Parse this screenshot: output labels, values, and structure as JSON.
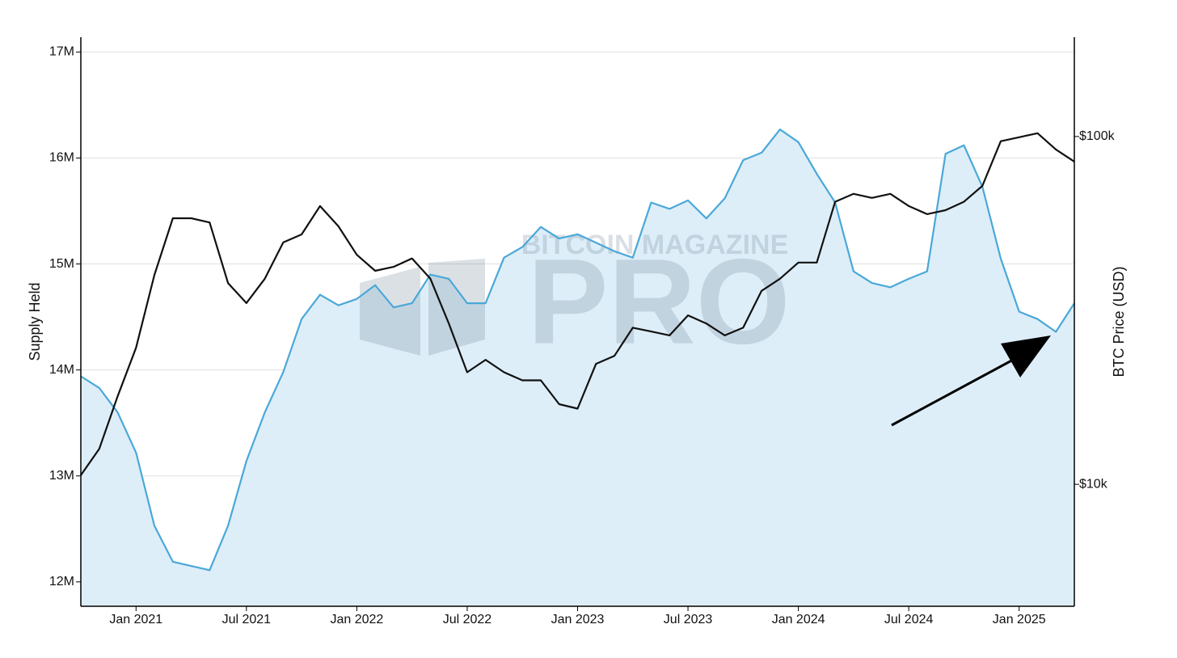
{
  "chart_data": {
    "type": "line",
    "y_label": "Supply Held",
    "y2_label": "BTC Price (USD)",
    "watermark": [
      "BITCOIN MAGAZINE",
      "PRO"
    ],
    "x": [
      "2020-10",
      "2020-11",
      "2020-12",
      "2021-01",
      "2021-02",
      "2021-03",
      "2021-04",
      "2021-05",
      "2021-06",
      "2021-07",
      "2021-08",
      "2021-09",
      "2021-10",
      "2021-11",
      "2021-12",
      "2022-01",
      "2022-02",
      "2022-03",
      "2022-04",
      "2022-05",
      "2022-06",
      "2022-07",
      "2022-08",
      "2022-09",
      "2022-10",
      "2022-11",
      "2022-12",
      "2023-01",
      "2023-02",
      "2023-03",
      "2023-04",
      "2023-05",
      "2023-06",
      "2023-07",
      "2023-08",
      "2023-09",
      "2023-10",
      "2023-11",
      "2023-12",
      "2024-01",
      "2024-02",
      "2024-03",
      "2024-04",
      "2024-05",
      "2024-06",
      "2024-07",
      "2024-08",
      "2024-09",
      "2024-10",
      "2024-11",
      "2024-12",
      "2025-01",
      "2025-02",
      "2025-03",
      "2025-04"
    ],
    "xlim": [
      "2020-10",
      "2025-04"
    ],
    "xticks": [
      {
        "value": "2021-01",
        "label": "Jan 2021"
      },
      {
        "value": "2021-07",
        "label": "Jul 2021"
      },
      {
        "value": "2022-01",
        "label": "Jan 2022"
      },
      {
        "value": "2022-07",
        "label": "Jul 2022"
      },
      {
        "value": "2023-01",
        "label": "Jan 2023"
      },
      {
        "value": "2023-07",
        "label": "Jul 2023"
      },
      {
        "value": "2024-01",
        "label": "Jan 2024"
      },
      {
        "value": "2024-07",
        "label": "Jul 2024"
      },
      {
        "value": "2025-01",
        "label": "Jan 2025"
      }
    ],
    "ylim": [
      11770000,
      17140000
    ],
    "yticks": [
      {
        "value": 12000000,
        "label": "12M"
      },
      {
        "value": 13000000,
        "label": "13M"
      },
      {
        "value": 14000000,
        "label": "14M"
      },
      {
        "value": 15000000,
        "label": "15M"
      },
      {
        "value": 16000000,
        "label": "16M"
      },
      {
        "value": 17000000,
        "label": "17M"
      }
    ],
    "y2lim": [
      4460,
      193000
    ],
    "y2ticks": [
      {
        "value": 10000,
        "label": "$10k"
      },
      {
        "value": 100000,
        "label": "$100k"
      }
    ],
    "y2log": true,
    "grid": true,
    "series": [
      {
        "name": "Supply Held",
        "color": "#4aa8d8",
        "fill": "#ddeef9",
        "axis": "y",
        "values": [
          13940000,
          13830000,
          13600000,
          13220000,
          12530000,
          12190000,
          12150000,
          12110000,
          12530000,
          13140000,
          13600000,
          13980000,
          14480000,
          14710000,
          14610000,
          14670000,
          14800000,
          14590000,
          14630000,
          14900000,
          14860000,
          14630000,
          14630000,
          15060000,
          15160000,
          15350000,
          15240000,
          15280000,
          15200000,
          15120000,
          15060000,
          15580000,
          15520000,
          15600000,
          15430000,
          15620000,
          15980000,
          16050000,
          16270000,
          16150000,
          15850000,
          15580000,
          14930000,
          14820000,
          14780000,
          14860000,
          14930000,
          16040000,
          16120000,
          15730000,
          15050000,
          14550000,
          14480000,
          14360000,
          14630000
        ]
      },
      {
        "name": "BTC Price",
        "color": "#111111",
        "axis": "y2",
        "values": [
          10620,
          12650,
          17900,
          24700,
          40000,
          58200,
          58200,
          56600,
          37900,
          33200,
          39000,
          49600,
          52300,
          63100,
          55200,
          45700,
          41100,
          42200,
          44600,
          39000,
          29000,
          21000,
          22800,
          21000,
          19900,
          19900,
          17000,
          16500,
          22200,
          23400,
          28200,
          27500,
          26800,
          30600,
          29000,
          26800,
          28200,
          36000,
          39000,
          43400,
          43400,
          64900,
          68400,
          66600,
          68400,
          63100,
          59800,
          61400,
          64900,
          72100,
          96900,
          99500,
          102200,
          91800,
          84700
        ]
      }
    ]
  }
}
